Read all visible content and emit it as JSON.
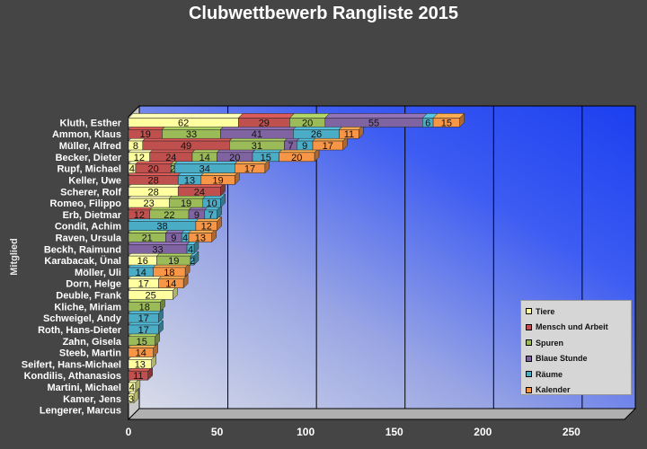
{
  "chart_data": {
    "type": "bar",
    "orientation": "horizontal",
    "stacked": true,
    "three_d": true,
    "title": "Clubwettbewerb Rangliste 2015",
    "xlabel": "",
    "ylabel": "Mitglied",
    "xlim": [
      0,
      280
    ],
    "xticks": [
      0,
      50,
      100,
      150,
      200,
      250
    ],
    "grid": "vertical",
    "legend_position": "bottom-right",
    "categories": [
      "Kluth, Esther",
      "Ammon, Klaus",
      "Müller, Alfred",
      "Becker, Dieter",
      "Rupf, Michael",
      "Keller, Uwe",
      "Scherer, Rolf",
      "Romeo, Filippo",
      "Erb, Dietmar",
      "Condit, Achim",
      "Raven, Ursula",
      "Beckh, Raimund",
      "Karabacak, Ünal",
      "Möller, Uli",
      "Dorn, Helge",
      "Deuble, Frank",
      "Kliche, Miriam",
      "Schweigel, Andy",
      "Roth, Hans-Dieter",
      "Zahn, Gisela",
      "Steeb, Martin",
      "Seifert, Hans-Michael",
      "Kondilis, Athanasios",
      "Martini, Michael",
      "Kamer, Jens",
      "Lengerer, Marcus"
    ],
    "series": [
      {
        "name": "Tiere",
        "color": "#ffffa0",
        "values": [
          62,
          0,
          8,
          12,
          4,
          0,
          28,
          23,
          0,
          0,
          0,
          0,
          16,
          0,
          17,
          25,
          0,
          0,
          0,
          0,
          0,
          13,
          0,
          4,
          3,
          0
        ]
      },
      {
        "name": "Mensch und Arbeit",
        "color": "#c0504d",
        "values": [
          29,
          19,
          49,
          24,
          20,
          28,
          24,
          0,
          12,
          0,
          0,
          0,
          0,
          0,
          0,
          0,
          0,
          0,
          0,
          0,
          0,
          0,
          11,
          0,
          0,
          0
        ]
      },
      {
        "name": "Spuren",
        "color": "#9bbb59",
        "values": [
          20,
          33,
          31,
          14,
          2,
          0,
          0,
          19,
          22,
          0,
          21,
          0,
          19,
          0,
          0,
          0,
          18,
          0,
          0,
          15,
          0,
          0,
          0,
          0,
          0,
          0
        ]
      },
      {
        "name": "Blaue Stunde",
        "color": "#8064a2",
        "values": [
          55,
          41,
          7,
          20,
          0,
          0,
          0,
          0,
          9,
          0,
          9,
          33,
          0,
          0,
          0,
          0,
          0,
          0,
          0,
          0,
          0,
          0,
          0,
          0,
          0,
          0
        ]
      },
      {
        "name": "Räume",
        "color": "#4bacc6",
        "values": [
          6,
          26,
          9,
          15,
          34,
          13,
          0,
          10,
          7,
          38,
          4,
          4,
          2,
          14,
          0,
          0,
          0,
          17,
          17,
          0,
          0,
          0,
          0,
          0,
          0,
          0
        ]
      },
      {
        "name": "Kalender",
        "color": "#f79646",
        "values": [
          15,
          11,
          17,
          20,
          17,
          19,
          0,
          0,
          0,
          12,
          13,
          0,
          0,
          18,
          14,
          0,
          0,
          0,
          0,
          0,
          14,
          0,
          0,
          0,
          0,
          0
        ]
      }
    ]
  }
}
